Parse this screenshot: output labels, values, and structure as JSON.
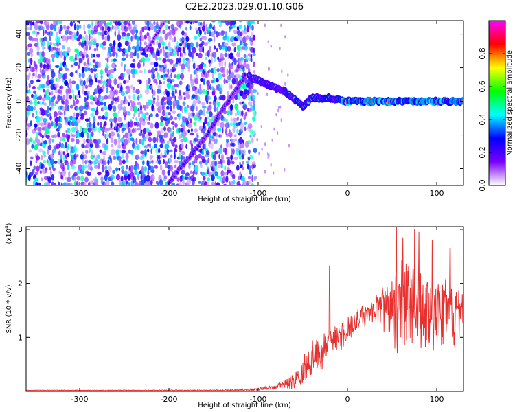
{
  "title": "C2E2.2023.029.01.10.G06",
  "chart_data": [
    {
      "type": "heatmap",
      "xlabel": "Height of straight line (km)",
      "ylabel": "Frequency (Hz)",
      "xlim": [
        -360,
        130
      ],
      "ylim": [
        -50,
        48
      ],
      "xticks": [
        -300,
        -200,
        -100,
        0,
        100
      ],
      "yticks": [
        -40,
        -20,
        0,
        20,
        40
      ],
      "colorbar": {
        "label": "Normalized spectral amplitude",
        "range": [
          0,
          1
        ],
        "ticks": [
          0.0,
          0.2,
          0.4,
          0.6,
          0.8
        ],
        "colors": [
          "#ffffff",
          "#7a00ff",
          "#0000ff",
          "#00ffff",
          "#00ff00",
          "#ffff00",
          "#ff0000",
          "#ff00ff"
        ]
      },
      "features": [
        {
          "name": "noise_region",
          "x_range": [
            -360,
            -105
          ]
        },
        {
          "name": "diagonal_track",
          "points": [
            [
              -200,
              -48
            ],
            [
              -160,
              -22
            ],
            [
              -140,
              -5
            ],
            [
              -115,
              15
            ]
          ]
        },
        {
          "name": "secondary_track",
          "points": [
            [
              -225,
              30
            ],
            [
              -205,
              48
            ]
          ]
        },
        {
          "name": "main_ridge",
          "points": [
            [
              -110,
              15
            ],
            [
              -90,
              10
            ],
            [
              -70,
              6
            ],
            [
              -50,
              -3
            ],
            [
              -40,
              2
            ],
            [
              -20,
              2
            ],
            [
              0,
              0
            ],
            [
              130,
              0
            ]
          ]
        }
      ],
      "grid": false
    },
    {
      "type": "line",
      "xlabel": "Height of straight line (km)",
      "ylabel": "SNR (10 * v/v)",
      "yunit_label": "(x10",
      "yunit_exp": "4",
      "yunit_close": ")",
      "xlim": [
        -360,
        130
      ],
      "ylim": [
        0,
        3.05
      ],
      "xticks": [
        -300,
        -200,
        -100,
        0,
        100
      ],
      "yticks": [
        1,
        2,
        3
      ],
      "series": [
        {
          "color": "#e8302f",
          "envelope": {
            "x": [
              -360,
              -150,
              -110,
              -100,
              -80,
              -60,
              -50,
              -40,
              -30,
              -20,
              -10,
              0,
              10,
              20,
              30,
              40,
              50,
              60,
              70,
              80,
              90,
              100,
              110,
              120,
              130
            ],
            "mean": [
              0.02,
              0.02,
              0.03,
              0.04,
              0.08,
              0.18,
              0.35,
              0.55,
              0.75,
              0.9,
              1.0,
              1.15,
              1.3,
              1.4,
              1.48,
              1.52,
              1.58,
              1.6,
              1.6,
              1.58,
              1.55,
              1.5,
              1.5,
              1.45,
              1.4
            ],
            "spread": [
              0.005,
              0.01,
              0.02,
              0.03,
              0.06,
              0.15,
              0.3,
              0.4,
              0.4,
              0.35,
              0.3,
              0.3,
              0.25,
              0.25,
              0.3,
              0.5,
              0.8,
              1.0,
              1.0,
              1.0,
              0.9,
              0.8,
              0.7,
              0.7,
              0.6
            ]
          },
          "peaks": [
            [
              -20,
              2.32
            ],
            [
              55,
              3.05
            ],
            [
              62,
              2.85
            ],
            [
              75,
              3.0
            ],
            [
              80,
              2.95
            ],
            [
              95,
              2.8
            ],
            [
              115,
              2.65
            ]
          ]
        }
      ],
      "grid": false
    }
  ]
}
